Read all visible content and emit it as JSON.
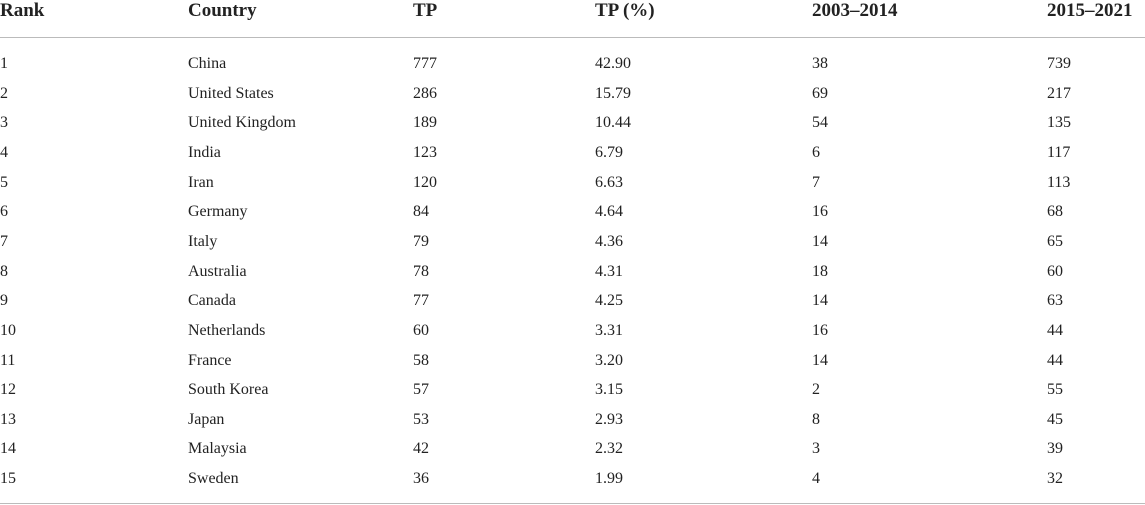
{
  "table": {
    "header": [
      "Rank",
      "Country",
      "TP",
      "TP (%)",
      "2003–2014",
      "2015–2021"
    ],
    "rows": [
      [
        "1",
        "China",
        "777",
        "42.90",
        "38",
        "739"
      ],
      [
        "2",
        "United States",
        "286",
        "15.79",
        "69",
        "217"
      ],
      [
        "3",
        "United Kingdom",
        "189",
        "10.44",
        "54",
        "135"
      ],
      [
        "4",
        "India",
        "123",
        "6.79",
        "6",
        "117"
      ],
      [
        "5",
        "Iran",
        "120",
        "6.63",
        "7",
        "113"
      ],
      [
        "6",
        "Germany",
        "84",
        "4.64",
        "16",
        "68"
      ],
      [
        "7",
        "Italy",
        "79",
        "4.36",
        "14",
        "65"
      ],
      [
        "8",
        "Australia",
        "78",
        "4.31",
        "18",
        "60"
      ],
      [
        "9",
        "Canada",
        "77",
        "4.25",
        "14",
        "63"
      ],
      [
        "10",
        "Netherlands",
        "60",
        "3.31",
        "16",
        "44"
      ],
      [
        "11",
        "France",
        "58",
        "3.20",
        "14",
        "44"
      ],
      [
        "12",
        "South Korea",
        "57",
        "3.15",
        "2",
        "55"
      ],
      [
        "13",
        "Japan",
        "53",
        "2.93",
        "8",
        "45"
      ],
      [
        "14",
        "Malaysia",
        "42",
        "2.32",
        "3",
        "39"
      ],
      [
        "15",
        "Sweden",
        "36",
        "1.99",
        "4",
        "32"
      ]
    ]
  }
}
